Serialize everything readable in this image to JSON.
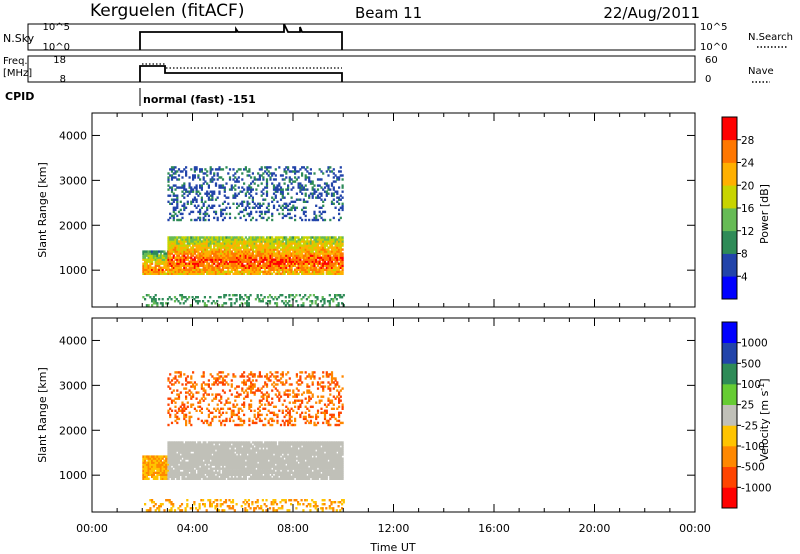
{
  "header": {
    "station": "Kerguelen (fitACF)",
    "beam": "Beam 11",
    "date": "22/Aug/2011"
  },
  "nsky_panel": {
    "left_label": "N.Sky",
    "right_label": "N.Search",
    "left_ticks": [
      "10^5",
      "10^0"
    ],
    "right_ticks": [
      "10^5",
      "10^0"
    ]
  },
  "freq_panel": {
    "left_label_line1": "Freq.",
    "left_label_line2": "[MHz]",
    "right_label": "Nave",
    "left_ticks": [
      "18",
      "8"
    ],
    "right_ticks": [
      "60",
      "0"
    ]
  },
  "cpid": {
    "label": "CPID",
    "text": "normal (fast) -151"
  },
  "chart_data": [
    {
      "type": "heatmap",
      "title": "",
      "xlabel": "",
      "ylabel": "Slant Range [km]",
      "xlim": [
        0,
        24
      ],
      "ylim": [
        180,
        4500
      ],
      "y_ticks": [
        "1000",
        "2000",
        "3000",
        "4000"
      ],
      "colorbar": {
        "label": "Power [dB]",
        "range": [
          0,
          32
        ],
        "ticks": [
          "4",
          "8",
          "12",
          "16",
          "20",
          "24",
          "28"
        ],
        "colors": [
          "#0000ff",
          "#2244aa",
          "#2e8b57",
          "#66bb55",
          "#c8d400",
          "#ffb000",
          "#ff7700",
          "#ff0000"
        ]
      },
      "regions": [
        {
          "t_start": 2.0,
          "t_end": 3.0,
          "r_start": 900,
          "r_end": 1400,
          "value": 16
        },
        {
          "t_start": 3.0,
          "t_end": 10.0,
          "r_start": 900,
          "r_end": 1750,
          "value": 18
        },
        {
          "t_start": 3.0,
          "t_end": 10.0,
          "r_start": 2100,
          "r_end": 3300,
          "value": 4
        },
        {
          "t_start": 2.0,
          "t_end": 10.0,
          "r_start": 200,
          "r_end": 450,
          "value": 8
        }
      ]
    },
    {
      "type": "heatmap",
      "title": "",
      "xlabel": "Time UT",
      "ylabel": "Slant Range [km]",
      "xlim": [
        0,
        24
      ],
      "ylim": [
        180,
        4500
      ],
      "x_ticks": [
        "00:00",
        "04:00",
        "08:00",
        "12:00",
        "16:00",
        "20:00",
        "00:00"
      ],
      "y_ticks": [
        "1000",
        "2000",
        "3000",
        "4000"
      ],
      "colorbar": {
        "label": "Velocity [m s-1]",
        "ticks": [
          "1000",
          "500",
          "100",
          "25",
          "-25",
          "-100",
          "-500",
          "-1000"
        ],
        "colors": [
          "#0000ff",
          "#2244aa",
          "#2e8b57",
          "#66cc33",
          "#c0c0b8",
          "#ffc400",
          "#ff8800",
          "#ff4400",
          "#ff0000"
        ]
      },
      "regions": [
        {
          "t_start": 2.0,
          "t_end": 3.0,
          "r_start": 900,
          "r_end": 1400,
          "value": -100
        },
        {
          "t_start": 3.0,
          "t_end": 10.0,
          "r_start": 900,
          "r_end": 1750,
          "value": 0
        },
        {
          "t_start": 3.0,
          "t_end": 10.0,
          "r_start": 2100,
          "r_end": 3300,
          "value": -500
        },
        {
          "t_start": 2.0,
          "t_end": 10.0,
          "r_start": 200,
          "r_end": 450,
          "value": -100
        }
      ]
    }
  ]
}
